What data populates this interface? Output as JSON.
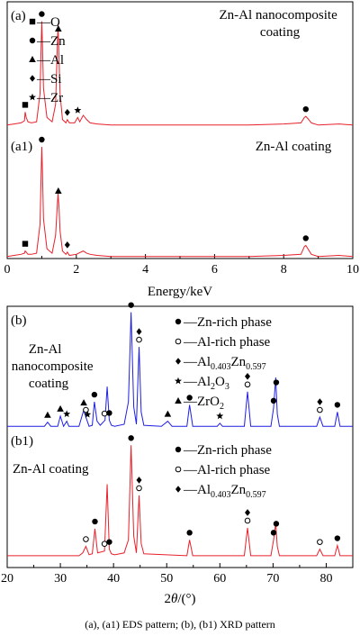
{
  "chart_data": [
    {
      "type": "line",
      "panel": "EDS",
      "xlabel": "Energy/keV",
      "xlim": [
        0,
        10
      ],
      "x_ticks": [
        "0",
        "2",
        "4",
        "6",
        "8",
        "10"
      ],
      "grid": false,
      "line_color": "#e8202a",
      "series": [
        {
          "label": "(a)",
          "title": "Zn-Al nanocomposite coating",
          "x": [
            0.0,
            0.2,
            0.4,
            0.5,
            0.52,
            0.55,
            0.6,
            0.7,
            0.85,
            0.95,
            1.0,
            1.02,
            1.05,
            1.15,
            1.3,
            1.4,
            1.47,
            1.5,
            1.53,
            1.6,
            1.7,
            1.74,
            1.8,
            1.95,
            2.04,
            2.1,
            2.2,
            2.3,
            2.4,
            2.6,
            3.0,
            4.0,
            5.0,
            6.0,
            7.0,
            8.0,
            8.5,
            8.6,
            8.64,
            8.7,
            8.8,
            9.0,
            9.6,
            10.0
          ],
          "y": [
            1,
            2,
            3,
            5,
            13,
            8,
            4,
            3,
            4,
            30,
            97,
            75,
            35,
            8,
            4,
            20,
            94,
            62,
            30,
            6,
            3,
            6,
            3,
            3,
            8,
            4,
            10,
            6,
            3,
            2,
            1,
            1,
            1,
            1,
            1,
            2,
            3,
            8,
            9,
            7,
            3,
            1,
            2,
            1
          ]
        },
        {
          "label": "(a1)",
          "title": "Zn-Al coating",
          "x": [
            0.0,
            0.2,
            0.4,
            0.5,
            0.52,
            0.55,
            0.6,
            0.7,
            0.85,
            0.95,
            1.0,
            1.02,
            1.05,
            1.15,
            1.3,
            1.4,
            1.47,
            1.5,
            1.53,
            1.6,
            1.7,
            1.74,
            1.8,
            2.0,
            2.2,
            2.3,
            2.4,
            2.6,
            3.0,
            4.0,
            5.0,
            6.0,
            7.0,
            8.0,
            8.5,
            8.6,
            8.64,
            8.7,
            8.8,
            9.0,
            9.6,
            10.0
          ],
          "y": [
            1,
            2,
            3,
            4,
            6,
            5,
            3,
            3,
            4,
            30,
            100,
            78,
            35,
            8,
            4,
            20,
            58,
            45,
            24,
            6,
            3,
            5,
            2,
            3,
            6,
            4,
            3,
            2,
            1,
            1,
            1,
            1,
            1,
            2,
            3,
            10,
            11,
            8,
            3,
            1,
            2,
            1
          ]
        }
      ],
      "markers": [
        {
          "panel": 0,
          "symbol": "square",
          "x": 0.52
        },
        {
          "panel": 0,
          "symbol": "circle",
          "x": 1.0
        },
        {
          "panel": 0,
          "symbol": "triangle",
          "x": 1.48
        },
        {
          "panel": 0,
          "symbol": "diamond",
          "x": 1.74
        },
        {
          "panel": 0,
          "symbol": "star",
          "x": 2.04
        },
        {
          "panel": 0,
          "symbol": "circle",
          "x": 8.64
        },
        {
          "panel": 1,
          "symbol": "square",
          "x": 0.52
        },
        {
          "panel": 1,
          "symbol": "circle",
          "x": 1.0
        },
        {
          "panel": 1,
          "symbol": "triangle",
          "x": 1.48
        },
        {
          "panel": 1,
          "symbol": "diamond",
          "x": 1.74
        },
        {
          "panel": 1,
          "symbol": "circle",
          "x": 8.64
        }
      ],
      "legend": [
        {
          "symbol": "square",
          "text": "—O"
        },
        {
          "symbol": "circle",
          "text": "—Zn"
        },
        {
          "symbol": "triangle",
          "text": "—Al"
        },
        {
          "symbol": "diamond",
          "text": "—Si"
        },
        {
          "symbol": "star",
          "text": "—Zr"
        }
      ],
      "legend_position": "top-left"
    },
    {
      "type": "line",
      "panel": "XRD",
      "xlabel": "2θ/(°)",
      "xlim": [
        20,
        85
      ],
      "x_ticks": [
        "20",
        "30",
        "40",
        "50",
        "60",
        "70",
        "80"
      ],
      "grid": false,
      "series": [
        {
          "label": "(b)",
          "title": "Zn-Al nanocomposite coating",
          "title_lines": [
            "Zn-Al",
            "nanocomposite",
            "coating"
          ],
          "color": "#1f1fe0",
          "x": [
            20,
            27,
            27.6,
            28.2,
            29.5,
            30.0,
            30.6,
            31.2,
            31.6,
            32.0,
            33.5,
            34.4,
            34.8,
            35.4,
            36.0,
            36.4,
            36.9,
            37.5,
            38.4,
            38.8,
            39.2,
            39.6,
            40.2,
            42.0,
            42.8,
            43.3,
            43.8,
            44.3,
            44.8,
            45.2,
            45.7,
            49.0,
            50.2,
            51.0,
            53.8,
            54.3,
            54.9,
            59.5,
            60.0,
            60.5,
            64.6,
            65.2,
            65.8,
            69.6,
            70.1,
            70.5,
            70.8,
            71.2,
            78.2,
            78.8,
            79.4,
            81.6,
            82.1,
            82.6,
            85
          ],
          "y": [
            6,
            6,
            10,
            6,
            6,
            16,
            6,
            11,
            6,
            6,
            6,
            22,
            15,
            6,
            7,
            30,
            11,
            7,
            12,
            45,
            12,
            7,
            6,
            8,
            30,
            118,
            25,
            8,
            84,
            20,
            7,
            6,
            11,
            6,
            6,
            27,
            6,
            6,
            9,
            6,
            6,
            40,
            6,
            6,
            24,
            54,
            18,
            6,
            6,
            15,
            6,
            6,
            20,
            6,
            6
          ]
        },
        {
          "label": "(b1)",
          "title": "Zn-Al coating",
          "color": "#e8202a",
          "x": [
            20,
            33.5,
            34.2,
            34.8,
            35.4,
            36.0,
            36.5,
            37.0,
            38.3,
            38.8,
            39.2,
            39.6,
            40.2,
            42.0,
            42.8,
            43.3,
            43.8,
            44.3,
            44.8,
            45.2,
            45.7,
            53.8,
            54.3,
            54.9,
            64.6,
            65.2,
            65.8,
            69.6,
            70.1,
            70.5,
            70.8,
            71.2,
            78.2,
            78.8,
            79.4,
            81.6,
            82.1,
            82.6,
            85
          ],
          "y": [
            5,
            5,
            8,
            15,
            6,
            7,
            34,
            8,
            10,
            82,
            12,
            7,
            6,
            8,
            22,
            124,
            26,
            8,
            70,
            18,
            7,
            5,
            22,
            5,
            5,
            35,
            5,
            5,
            22,
            40,
            15,
            5,
            5,
            12,
            5,
            5,
            16,
            5,
            5
          ]
        }
      ],
      "markers": [
        {
          "panel": 0,
          "symbol": "triangle",
          "x": 27.6
        },
        {
          "panel": 0,
          "symbol": "triangle",
          "x": 30.0
        },
        {
          "panel": 0,
          "symbol": "star",
          "x": 31.2
        },
        {
          "panel": 0,
          "symbol": "triangle",
          "x": 34.4
        },
        {
          "panel": 0,
          "symbol": "hollow-circle",
          "x": 34.8
        },
        {
          "panel": 0,
          "symbol": "star",
          "x": 35.1
        },
        {
          "panel": 0,
          "symbol": "circle",
          "x": 36.4
        },
        {
          "panel": 0,
          "symbol": "hollow-circle",
          "x": 38.3
        },
        {
          "panel": 0,
          "symbol": "circle",
          "x": 39.2
        },
        {
          "panel": 0,
          "symbol": "circle",
          "x": 43.3
        },
        {
          "panel": 0,
          "symbol": "hollow-circle",
          "x": 44.8
        },
        {
          "panel": 0,
          "symbol": "diamond",
          "x": 44.8
        },
        {
          "panel": 0,
          "symbol": "triangle",
          "x": 50.2
        },
        {
          "panel": 0,
          "symbol": "circle",
          "x": 54.3
        },
        {
          "panel": 0,
          "symbol": "star",
          "x": 60.0
        },
        {
          "panel": 0,
          "symbol": "hollow-circle",
          "x": 65.2
        },
        {
          "panel": 0,
          "symbol": "diamond",
          "x": 65.2
        },
        {
          "panel": 0,
          "symbol": "circle",
          "x": 70.1
        },
        {
          "panel": 0,
          "symbol": "circle",
          "x": 70.6
        },
        {
          "panel": 0,
          "symbol": "hollow-circle",
          "x": 78.8
        },
        {
          "panel": 0,
          "symbol": "diamond",
          "x": 78.8
        },
        {
          "panel": 0,
          "symbol": "circle",
          "x": 82.1
        },
        {
          "panel": 1,
          "symbol": "hollow-circle",
          "x": 34.8
        },
        {
          "panel": 1,
          "symbol": "circle",
          "x": 36.5
        },
        {
          "panel": 1,
          "symbol": "hollow-circle",
          "x": 38.3
        },
        {
          "panel": 1,
          "symbol": "circle",
          "x": 39.2
        },
        {
          "panel": 1,
          "symbol": "circle",
          "x": 43.3
        },
        {
          "panel": 1,
          "symbol": "hollow-circle",
          "x": 44.8
        },
        {
          "panel": 1,
          "symbol": "diamond",
          "x": 44.8
        },
        {
          "panel": 1,
          "symbol": "circle",
          "x": 54.3
        },
        {
          "panel": 1,
          "symbol": "hollow-circle",
          "x": 65.2
        },
        {
          "panel": 1,
          "symbol": "diamond",
          "x": 65.2
        },
        {
          "panel": 1,
          "symbol": "circle",
          "x": 70.1
        },
        {
          "panel": 1,
          "symbol": "circle",
          "x": 70.6
        },
        {
          "panel": 1,
          "symbol": "hollow-circle",
          "x": 78.8
        },
        {
          "panel": 1,
          "symbol": "circle",
          "x": 82.1
        }
      ],
      "legends": [
        {
          "panel": 0,
          "position": "top-right",
          "items": [
            {
              "symbol": "circle",
              "text": "—Zn-rich phase"
            },
            {
              "symbol": "hollow-circle",
              "text": "—Al-rich phase"
            },
            {
              "symbol": "diamond",
              "text": "—Al",
              "sub1": "0.403",
              "mid": "Zn",
              "sub2": "0.597"
            },
            {
              "symbol": "star",
              "text": "—Al",
              "sub1": "2",
              "mid": "O",
              "sub2": "3"
            },
            {
              "symbol": "triangle",
              "text": "—ZrO",
              "sub1": "2",
              "mid": "",
              "sub2": ""
            }
          ]
        },
        {
          "panel": 1,
          "position": "top-right",
          "items": [
            {
              "symbol": "circle",
              "text": "—Zn-rich phase"
            },
            {
              "symbol": "hollow-circle",
              "text": "—Al-rich phase"
            },
            {
              "symbol": "diamond",
              "text": "—Al",
              "sub1": "0.403",
              "mid": "Zn",
              "sub2": "0.597"
            }
          ]
        }
      ]
    }
  ],
  "caption": "(a), (a1) EDS pattern;   (b), (b1) XRD pattern"
}
